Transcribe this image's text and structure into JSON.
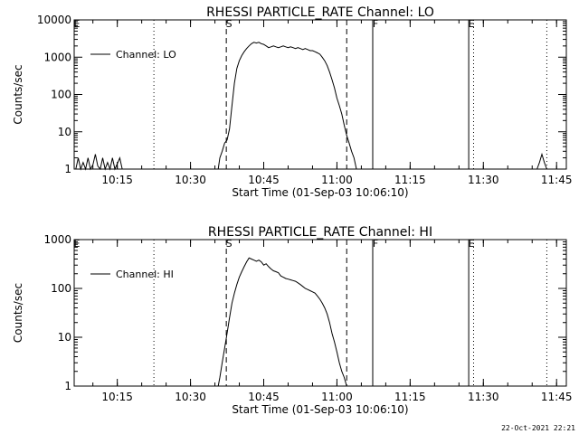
{
  "footer_stamp": "22-Oct-2021 22:21",
  "chart_data": [
    {
      "type": "line",
      "title": "RHESSI PARTICLE_RATE Channel: LO",
      "xlabel": "Start Time (01-Sep-03 10:06:10)",
      "ylabel": "Counts/sec",
      "yscale": "log",
      "ylim": [
        1,
        10000
      ],
      "xlim": [
        "10:06:10",
        "11:47:00"
      ],
      "x_ticks": [
        "10:15",
        "10:30",
        "10:45",
        "11:00",
        "11:15",
        "11:30",
        "11:45"
      ],
      "y_ticks": [
        "1",
        "10",
        "100",
        "1000",
        "10000"
      ],
      "legend": {
        "placement": "top-left",
        "entries": [
          "Channel: LO"
        ]
      },
      "markers": [
        {
          "label": "E",
          "time": "10:06:10",
          "style": "none"
        },
        {
          "label": "",
          "time": "10:22:30",
          "style": "dotted"
        },
        {
          "label": "S",
          "time": "10:37:20",
          "style": "dashed"
        },
        {
          "label": "",
          "time": "11:02:00",
          "style": "dashed"
        },
        {
          "label": "F",
          "time": "11:07:20",
          "style": "solid"
        },
        {
          "label": "E",
          "time": "11:27:00",
          "style": "solid"
        },
        {
          "label": "",
          "time": "11:28:00",
          "style": "dotted"
        },
        {
          "label": "",
          "time": "11:43:00",
          "style": "dotted"
        }
      ],
      "series": [
        {
          "name": "Channel: LO",
          "segments": [
            {
              "x": [
                "10:06:30",
                "10:07:00",
                "10:07:30",
                "10:08:00",
                "10:08:30",
                "10:09:00",
                "10:09:30",
                "10:10:00",
                "10:10:30",
                "10:11:00",
                "10:11:30",
                "10:12:00",
                "10:12:30",
                "10:13:00",
                "10:13:30",
                "10:14:00",
                "10:14:30",
                "10:15:00",
                "10:15:30",
                "10:16:00"
              ],
              "y": [
                1,
                2,
                1,
                1.5,
                1,
                2,
                1,
                1.3,
                2.5,
                1.2,
                1,
                2,
                1,
                1.5,
                1,
                2,
                1,
                1.4,
                2,
                1
              ]
            },
            {
              "x": [
                "10:35:40",
                "10:36:00",
                "10:36:30",
                "10:37:00",
                "10:37:30",
                "10:38:00",
                "10:38:30",
                "10:39:00",
                "10:39:30",
                "10:40:00",
                "10:40:30",
                "10:41:00",
                "10:41:30",
                "10:42:00",
                "10:42:30",
                "10:43:00",
                "10:43:30",
                "10:44:00",
                "10:44:30",
                "10:45:00",
                "10:45:30",
                "10:46:00",
                "10:46:30",
                "10:47:00",
                "10:47:30",
                "10:48:00",
                "10:48:30",
                "10:49:00",
                "10:49:30",
                "10:50:00",
                "10:50:30",
                "10:51:00",
                "10:51:30",
                "10:52:00",
                "10:52:30",
                "10:53:00",
                "10:53:30",
                "10:54:00",
                "10:54:30",
                "10:55:00",
                "10:55:30",
                "10:56:00",
                "10:56:30",
                "10:57:00",
                "10:57:30",
                "10:58:00",
                "10:58:30",
                "10:59:00",
                "10:59:30",
                "11:00:00",
                "11:00:30",
                "11:01:00",
                "11:01:30",
                "11:02:00",
                "11:02:30",
                "11:03:00",
                "11:03:30",
                "11:04:00"
              ],
              "y": [
                1,
                2,
                3,
                5,
                6,
                12,
                50,
                200,
                500,
                800,
                1100,
                1400,
                1700,
                2000,
                2300,
                2500,
                2400,
                2500,
                2300,
                2200,
                2000,
                1800,
                1900,
                2000,
                1900,
                1800,
                1900,
                2000,
                1900,
                1800,
                1900,
                1800,
                1700,
                1800,
                1700,
                1600,
                1700,
                1600,
                1500,
                1500,
                1400,
                1300,
                1200,
                1000,
                800,
                600,
                400,
                250,
                150,
                80,
                50,
                30,
                15,
                8,
                5,
                3,
                2,
                1
              ]
            },
            {
              "x": [
                "11:41:00",
                "11:41:30",
                "11:42:00",
                "11:42:30",
                "11:43:00"
              ],
              "y": [
                1,
                1.5,
                2.5,
                1.5,
                1
              ]
            }
          ]
        }
      ]
    },
    {
      "type": "line",
      "title": "RHESSI PARTICLE_RATE Channel: HI",
      "xlabel": "Start Time (01-Sep-03 10:06:10)",
      "ylabel": "Counts/sec",
      "yscale": "log",
      "ylim": [
        1,
        1000
      ],
      "xlim": [
        "10:06:10",
        "11:47:00"
      ],
      "x_ticks": [
        "10:15",
        "10:30",
        "10:45",
        "11:00",
        "11:15",
        "11:30",
        "11:45"
      ],
      "y_ticks": [
        "1",
        "10",
        "100",
        "1000"
      ],
      "legend": {
        "placement": "top-left",
        "entries": [
          "Channel: HI"
        ]
      },
      "markers": [
        {
          "label": "E",
          "time": "10:06:10",
          "style": "none"
        },
        {
          "label": "",
          "time": "10:22:30",
          "style": "dotted"
        },
        {
          "label": "S",
          "time": "10:37:20",
          "style": "dashed"
        },
        {
          "label": "",
          "time": "11:02:00",
          "style": "dashed"
        },
        {
          "label": "F",
          "time": "11:07:20",
          "style": "solid"
        },
        {
          "label": "E",
          "time": "11:27:00",
          "style": "solid"
        },
        {
          "label": "",
          "time": "11:28:00",
          "style": "dotted"
        },
        {
          "label": "",
          "time": "11:43:00",
          "style": "dotted"
        }
      ],
      "series": [
        {
          "name": "Channel: HI",
          "segments": [
            {
              "x": [
                "10:35:40",
                "10:36:00",
                "10:36:30",
                "10:37:00",
                "10:37:30",
                "10:38:00",
                "10:38:30",
                "10:39:00",
                "10:39:30",
                "10:40:00",
                "10:40:30",
                "10:41:00",
                "10:41:30",
                "10:42:00",
                "10:42:30",
                "10:43:00",
                "10:43:30",
                "10:44:00",
                "10:44:30",
                "10:45:00",
                "10:45:30",
                "10:46:00",
                "10:46:30",
                "10:47:00",
                "10:47:30",
                "10:48:00",
                "10:48:30",
                "10:49:00",
                "10:49:30",
                "10:50:00",
                "10:50:30",
                "10:51:00",
                "10:51:30",
                "10:52:00",
                "10:52:30",
                "10:53:00",
                "10:53:30",
                "10:54:00",
                "10:54:30",
                "10:55:00",
                "10:55:30",
                "10:56:00",
                "10:56:30",
                "10:57:00",
                "10:57:30",
                "10:58:00",
                "10:58:30",
                "10:59:00",
                "10:59:30",
                "11:00:00",
                "11:00:30",
                "11:01:00",
                "11:01:30",
                "11:02:00"
              ],
              "y": [
                1,
                1.5,
                3,
                6,
                12,
                25,
                50,
                80,
                120,
                170,
                220,
                280,
                350,
                420,
                400,
                380,
                360,
                380,
                350,
                300,
                320,
                280,
                250,
                230,
                220,
                210,
                180,
                170,
                160,
                155,
                150,
                145,
                140,
                130,
                120,
                110,
                100,
                95,
                90,
                85,
                80,
                70,
                60,
                50,
                40,
                30,
                20,
                12,
                8,
                5,
                3,
                2,
                1.5,
                1
              ]
            }
          ]
        }
      ]
    }
  ]
}
